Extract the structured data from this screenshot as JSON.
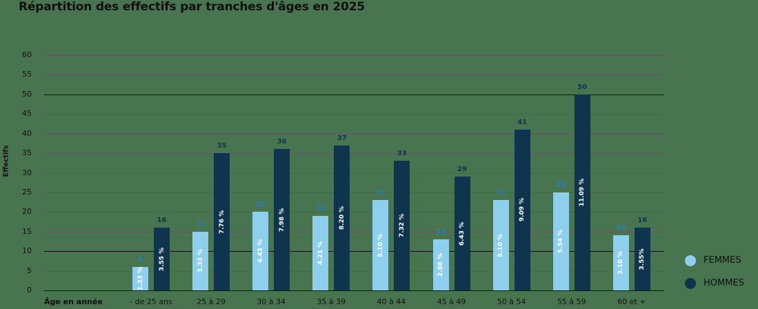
{
  "title": "Répartition des effectifs par tranches d'âges en 2025",
  "chart_data": {
    "type": "bar",
    "title": "Répartition des effectifs par tranches d'âges en 2025",
    "xlabel": "Âge en année",
    "ylabel": "Effectifs",
    "ylim": [
      0,
      60
    ],
    "yticks": [
      0,
      5,
      10,
      15,
      20,
      25,
      30,
      35,
      40,
      45,
      50,
      55,
      60
    ],
    "grid": true,
    "legend_position": "right-bottom",
    "categories": [
      "- de 25 ans",
      "25 à 29",
      "30 à 34",
      "35 à 39",
      "40 à 44",
      "45 à 49",
      "50 à 54",
      "55 à 59",
      "60 et +"
    ],
    "series": [
      {
        "name": "FEMMES",
        "color": "#8ecfee",
        "values": [
          6,
          15,
          20,
          19,
          23,
          13,
          23,
          25,
          14
        ],
        "percent_labels": [
          "1.33 %",
          "3.33 %",
          "4.43 %",
          "4.21 %",
          "5.10 %",
          "2.88 %",
          "5.10 %",
          "5.54 %",
          "3.10 %"
        ]
      },
      {
        "name": "HOMMES",
        "color": "#0f344d",
        "values": [
          16,
          35,
          36,
          37,
          33,
          29,
          41,
          50,
          16
        ],
        "percent_labels": [
          "3.55 %",
          "7.76 %",
          "7.98 %",
          "8.20 %",
          "7.32 %",
          "6.43 %",
          "9.09 %",
          "11.09 %",
          "3.55%"
        ]
      }
    ]
  },
  "legend": [
    {
      "label": "FEMMES",
      "color": "#8ecfee"
    },
    {
      "label": "HOMMES",
      "color": "#0f344d"
    }
  ]
}
